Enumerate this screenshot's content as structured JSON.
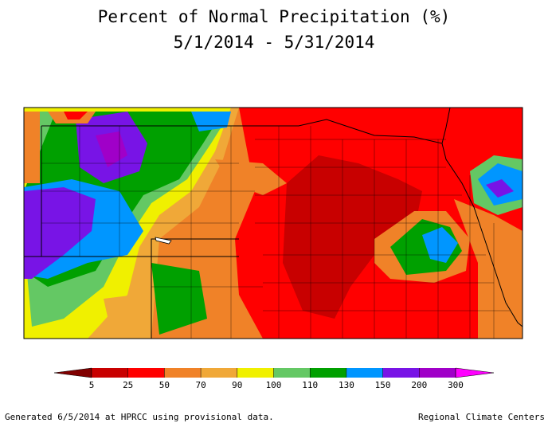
{
  "header": {
    "title": "Percent of Normal Precipitation (%)",
    "subtitle": "5/1/2014 - 5/31/2014"
  },
  "legend": {
    "ticks": [
      5,
      25,
      50,
      70,
      90,
      100,
      110,
      130,
      150,
      200,
      300
    ],
    "colors": [
      "#800000",
      "#c80000",
      "#ff0000",
      "#f08228",
      "#f0a838",
      "#f0f000",
      "#64c864",
      "#00a000",
      "#0096ff",
      "#7814e6",
      "#a000c8",
      "#ff00ff"
    ]
  },
  "footer": {
    "left": "Generated 6/5/2014 at HPRCC using provisional data.",
    "right": "Regional Climate Centers"
  }
}
